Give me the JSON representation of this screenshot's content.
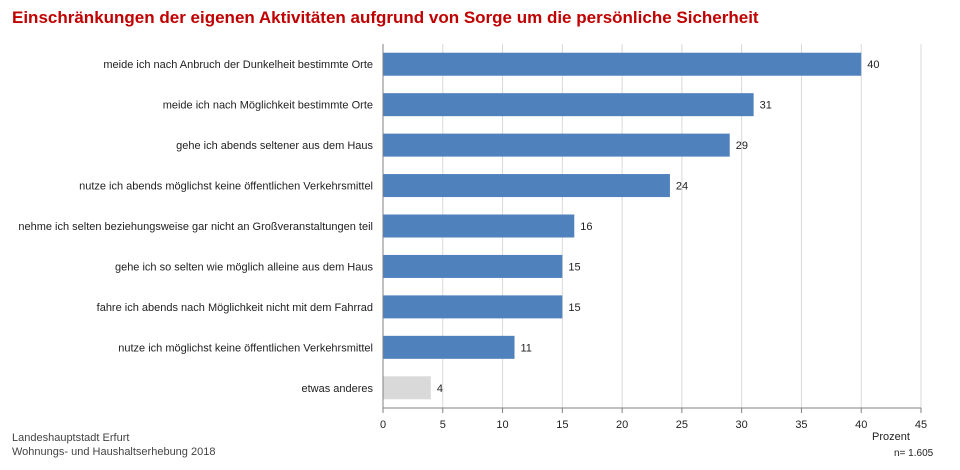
{
  "chart_data": {
    "type": "bar",
    "orientation": "horizontal",
    "title": "Einschränkungen der eigenen Aktivitäten aufgrund von Sorge um die persönliche Sicherheit",
    "xlabel": "Prozent",
    "xlim": [
      0,
      45
    ],
    "xticks": [
      0,
      5,
      10,
      15,
      20,
      25,
      30,
      35,
      40,
      45
    ],
    "grid": "vertical",
    "categories": [
      "meide ich nach Anbruch der Dunkelheit bestimmte Orte",
      "meide ich nach Möglichkeit bestimmte Orte",
      "gehe ich abends seltener aus dem Haus",
      "nutze ich abends möglichst keine öffentlichen Verkehrsmittel",
      "nehme ich selten beziehungsweise gar nicht an Großveranstaltungen teil",
      "gehe ich so selten wie möglich alleine aus dem Haus",
      "fahre ich abends nach Möglichkeit nicht mit dem Fahrrad",
      "nutze ich möglichst keine öffentlichen Verkehrsmittel",
      "etwas anderes"
    ],
    "values": [
      40,
      31,
      29,
      24,
      16,
      15,
      15,
      11,
      4
    ],
    "colors": [
      "#4f81bd",
      "#4f81bd",
      "#4f81bd",
      "#4f81bd",
      "#4f81bd",
      "#4f81bd",
      "#4f81bd",
      "#4f81bd",
      "#d9d9d9"
    ]
  },
  "footer": {
    "source_line1": "Landeshauptstadt Erfurt",
    "source_line2": "Wohnungs- und Haushaltserhebung 2018",
    "n": "n= 1.605"
  }
}
